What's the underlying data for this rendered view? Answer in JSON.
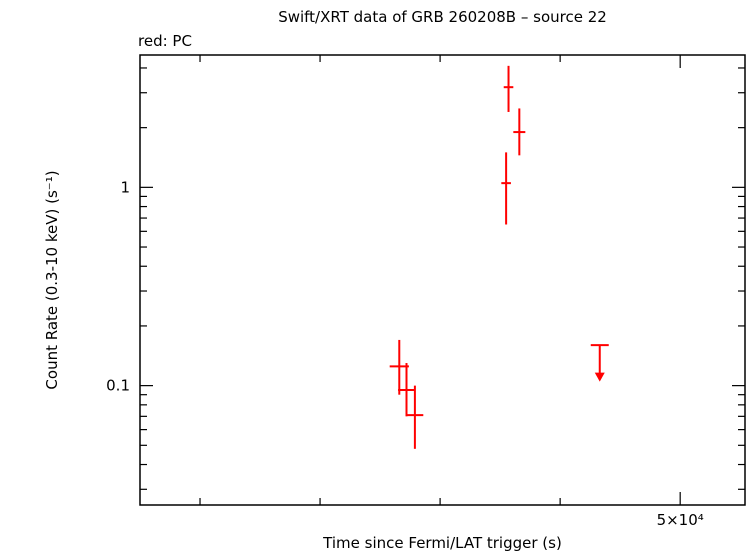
{
  "figure": {
    "title": "Swift/XRT data of GRB 260208B – source 22",
    "legend": "red: PC",
    "xlabel": "Time since Fermi/LAT trigger (s)",
    "ylabel": "Count Rate (0.3-10 keV) (s⁻¹)"
  },
  "colors": {
    "data": "#ff0000",
    "axis": "#000000",
    "background": "#ffffff"
  },
  "chart_data": {
    "type": "scatter",
    "mode": "errorbars-with-upper-limit",
    "x_scale": "linear",
    "y_scale": "log",
    "xlim": [
      5000,
      55400
    ],
    "ylim": [
      0.025,
      4.65
    ],
    "x_ticks": {
      "major": [
        {
          "value": 50000,
          "label": "5×10⁴"
        }
      ],
      "minor": [
        10000,
        20000,
        30000,
        40000
      ]
    },
    "y_ticks": {
      "major": [
        {
          "value": 1,
          "label": "1"
        },
        {
          "value": 0.1,
          "label": "0.1"
        }
      ],
      "minor": [
        0.03,
        0.04,
        0.05,
        0.06,
        0.07,
        0.08,
        0.09,
        0.2,
        0.3,
        0.4,
        0.5,
        0.6,
        0.7,
        0.8,
        0.9,
        2,
        3,
        4
      ]
    },
    "series": [
      {
        "name": "PC",
        "color": "#ff0000",
        "points": [
          {
            "t": 26600,
            "t_err": 800,
            "rate": 0.125,
            "rate_hi": 0.17,
            "rate_lo": 0.09
          },
          {
            "t": 27200,
            "t_err": 700,
            "rate": 0.095,
            "rate_hi": 0.13,
            "rate_lo": 0.07
          },
          {
            "t": 27900,
            "t_err": 700,
            "rate": 0.071,
            "rate_hi": 0.1,
            "rate_lo": 0.048
          },
          {
            "t": 35500,
            "t_err": 400,
            "rate": 1.05,
            "rate_hi": 1.5,
            "rate_lo": 0.65
          },
          {
            "t": 35700,
            "t_err": 400,
            "rate": 3.2,
            "rate_hi": 4.1,
            "rate_lo": 2.4
          },
          {
            "t": 36600,
            "t_err": 500,
            "rate": 1.9,
            "rate_hi": 2.5,
            "rate_lo": 1.45
          }
        ],
        "upper_limits": [
          {
            "t": 43300,
            "rate": 0.16,
            "arrow_to": 0.115
          }
        ]
      }
    ]
  }
}
